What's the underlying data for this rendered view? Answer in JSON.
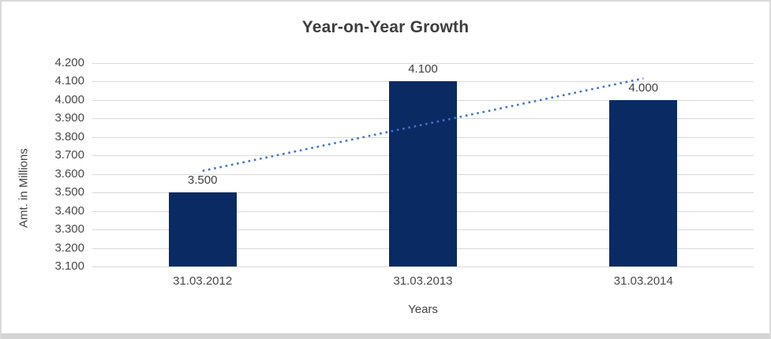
{
  "frame": {
    "background": "#ffffff",
    "border_color": "#d9d9d9",
    "bottom_edge_color": "#d4d4d4"
  },
  "chart_data": {
    "type": "bar",
    "title": "Year-on-Year Growth",
    "xlabel": "Years",
    "ylabel": "Amt. in Millions",
    "categories": [
      "31.03.2012",
      "31.03.2013",
      "31.03.2014"
    ],
    "values": [
      3.5,
      4.1,
      4.0
    ],
    "data_labels": [
      "3.500",
      "4.100",
      "4.000"
    ],
    "ylim": [
      3.1,
      4.2
    ],
    "ytick_step": 0.1,
    "ytick_labels": [
      "4.200",
      "4.100",
      "4.000",
      "3.900",
      "3.800",
      "3.700",
      "3.600",
      "3.500",
      "3.400",
      "3.300",
      "3.200",
      "3.100"
    ],
    "grid": true,
    "legend": "none",
    "bar_color": "#0a2a64",
    "gridline_color": "#d9d9d9",
    "title_color": "#3d3d3d",
    "text_color": "#494949",
    "trendline": {
      "style": "dotted",
      "color": "#4472c4",
      "start_value": 3.617,
      "end_value": 4.117
    }
  }
}
